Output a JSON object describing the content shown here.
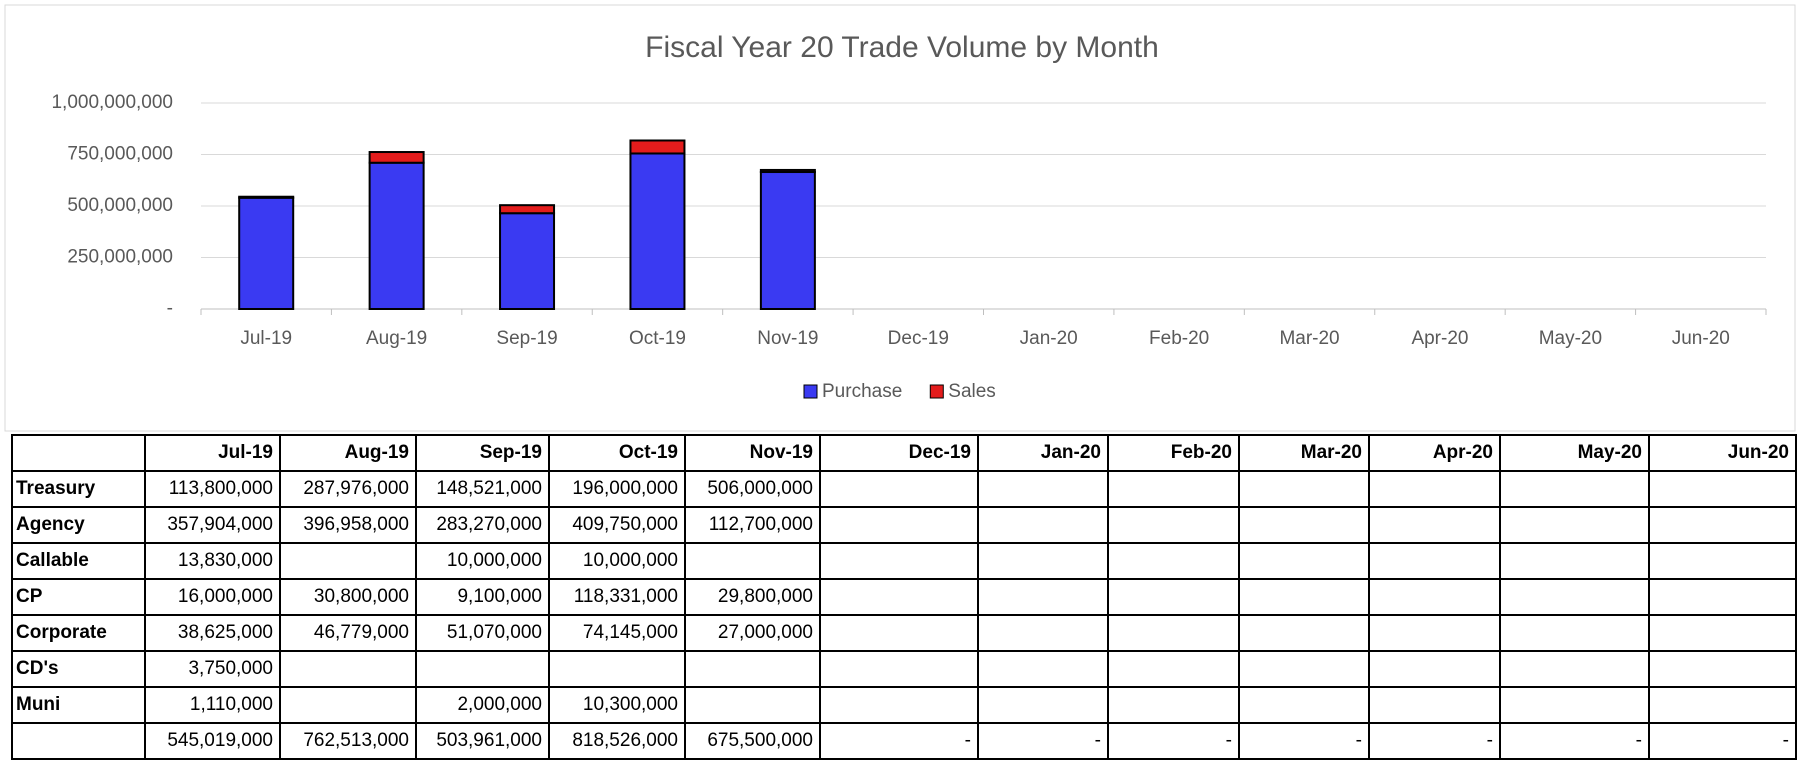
{
  "chart_data": {
    "type": "bar",
    "stacked": true,
    "title": "Fiscal Year 20 Trade Volume by Month",
    "categories": [
      "Jul-19",
      "Aug-19",
      "Sep-19",
      "Oct-19",
      "Nov-19",
      "Dec-19",
      "Jan-20",
      "Feb-20",
      "Mar-20",
      "Apr-20",
      "May-20",
      "Jun-20"
    ],
    "series": [
      {
        "name": "Purchase",
        "color": "#3a3af2",
        "values": [
          540000000,
          710000000,
          465000000,
          755000000,
          665000000,
          null,
          null,
          null,
          null,
          null,
          null,
          null
        ]
      },
      {
        "name": "Sales",
        "color": "#e31c1c",
        "values": [
          5000000,
          52000000,
          39000000,
          63000000,
          10000000,
          null,
          null,
          null,
          null,
          null,
          null,
          null
        ]
      }
    ],
    "ylim": [
      0,
      1000000000
    ],
    "yticks": [
      {
        "value": 0,
        "label": "-"
      },
      {
        "value": 250000000,
        "label": "250,000,000"
      },
      {
        "value": 500000000,
        "label": "500,000,000"
      },
      {
        "value": 750000000,
        "label": "750,000,000"
      },
      {
        "value": 1000000000,
        "label": "1,000,000,000"
      }
    ],
    "grid": true,
    "legend": "bottom"
  },
  "table": {
    "columns": [
      "Jul-19",
      "Aug-19",
      "Sep-19",
      "Oct-19",
      "Nov-19",
      "Dec-19",
      "Jan-20",
      "Feb-20",
      "Mar-20",
      "Apr-20",
      "May-20",
      "Jun-20"
    ],
    "rows": [
      {
        "label": "Treasury",
        "cells": [
          "113,800,000",
          "287,976,000",
          "148,521,000",
          "196,000,000",
          "506,000,000",
          null,
          null,
          null,
          null,
          null,
          null,
          null
        ]
      },
      {
        "label": "Agency",
        "cells": [
          "357,904,000",
          "396,958,000",
          "283,270,000",
          "409,750,000",
          "112,700,000",
          null,
          null,
          null,
          null,
          null,
          null,
          null
        ]
      },
      {
        "label": "Callable",
        "cells": [
          "13,830,000",
          null,
          "10,000,000",
          "10,000,000",
          null,
          null,
          null,
          null,
          null,
          null,
          null,
          null
        ]
      },
      {
        "label": "CP",
        "cells": [
          "16,000,000",
          "30,800,000",
          "9,100,000",
          "118,331,000",
          "29,800,000",
          null,
          null,
          null,
          null,
          null,
          null,
          null
        ]
      },
      {
        "label": "Corporate",
        "cells": [
          "38,625,000",
          "46,779,000",
          "51,070,000",
          "74,145,000",
          "27,000,000",
          null,
          null,
          null,
          null,
          null,
          null,
          null
        ]
      },
      {
        "label": "CD's",
        "cells": [
          "3,750,000",
          null,
          null,
          null,
          null,
          null,
          null,
          null,
          null,
          null,
          null,
          null
        ]
      },
      {
        "label": "Muni",
        "cells": [
          "1,110,000",
          null,
          "2,000,000",
          "10,300,000",
          null,
          null,
          null,
          null,
          null,
          null,
          null,
          null
        ]
      }
    ],
    "total": {
      "cells": [
        "545,019,000",
        "762,513,000",
        "503,961,000",
        "818,526,000",
        "675,500,000",
        "-",
        "-",
        "-",
        "-",
        "-",
        "-",
        "-"
      ]
    }
  }
}
